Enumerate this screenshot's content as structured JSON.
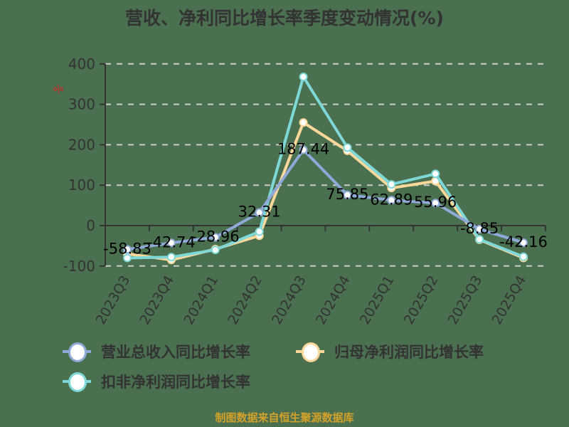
{
  "title": "营收、净利同比增长率季度变动情况(%)",
  "unit_label": "%",
  "footer": "制图数据来自恒生聚源数据库",
  "legend": [
    {
      "label": "营业总收入同比增长率",
      "color": "#8fa9d8"
    },
    {
      "label": "归母净利润同比增长率",
      "color": "#fcd89a"
    },
    {
      "label": "扣非净利润同比增长率",
      "color": "#7fd8d8"
    }
  ],
  "chart_data": {
    "type": "line",
    "title": "营收、净利同比增长率季度变动情况(%)",
    "xlabel": "",
    "ylabel": "%",
    "ylim": [
      -100,
      400
    ],
    "yticks": [
      -100,
      0,
      100,
      200,
      300,
      400
    ],
    "grid": true,
    "legend_position": "bottom",
    "categories": [
      "2023Q3",
      "2023Q4",
      "2024Q1",
      "2024Q2",
      "2024Q3",
      "2024Q4",
      "2025Q1",
      "2025Q2",
      "2025Q3",
      "2025Q4"
    ],
    "series": [
      {
        "name": "营业总收入同比增长率",
        "color": "#8fa9d8",
        "values": [
          -58.83,
          -42.74,
          -28.96,
          32.31,
          187.44,
          75.85,
          62.89,
          55.96,
          -8.85,
          -42.16
        ],
        "labels": [
          "-58.83",
          "-42.74",
          "-28.96",
          "32.31",
          "187.44",
          "75.85",
          "62.89",
          "55.96",
          "-8.85",
          "-42.16"
        ]
      },
      {
        "name": "归母净利润同比增长率",
        "color": "#fcd89a",
        "values": [
          -70,
          -85,
          -58,
          -25,
          255,
          185,
          93,
          110,
          -35,
          -80
        ]
      },
      {
        "name": "扣非净利润同比增长率",
        "color": "#7fd8d8",
        "values": [
          -80,
          -78,
          -60,
          -15,
          368,
          193,
          102,
          128,
          -34,
          -77
        ]
      }
    ]
  }
}
